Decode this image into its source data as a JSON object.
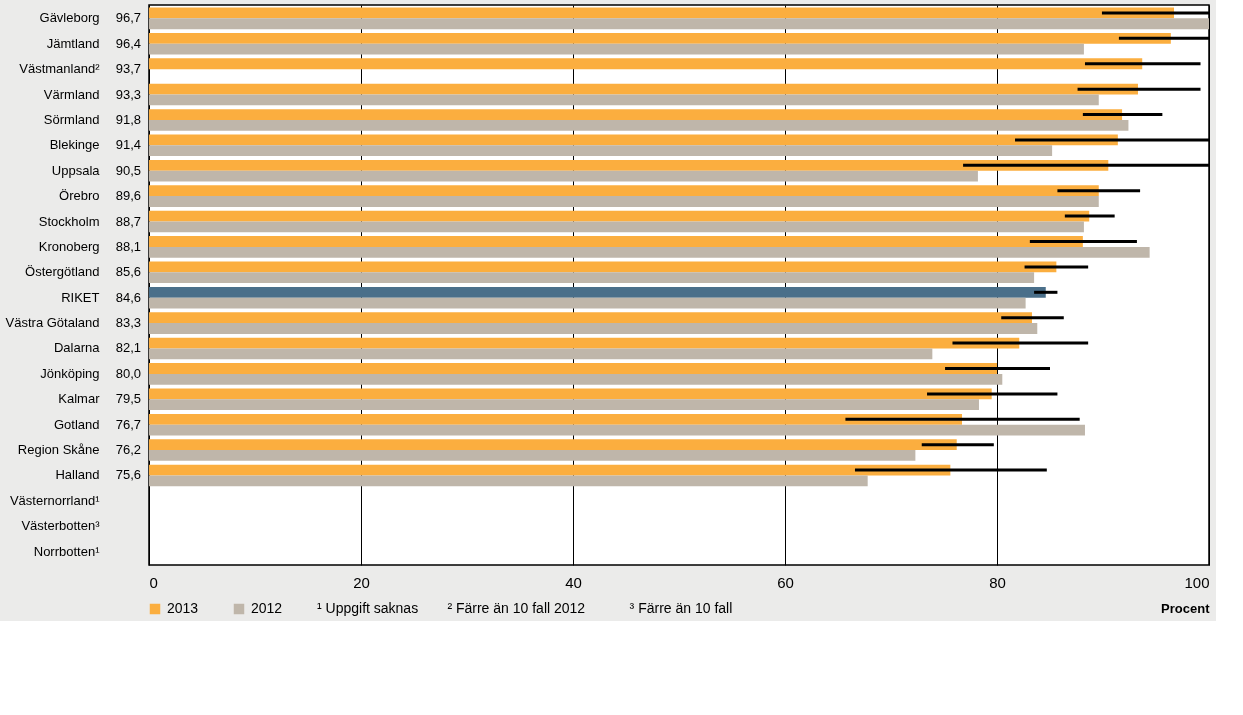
{
  "chart_data": {
    "type": "bar",
    "orientation": "horizontal",
    "categories": [
      "Gävleborg",
      "Jämtland",
      "Västmanland²",
      "Värmland",
      "Sörmland",
      "Blekinge",
      "Uppsala",
      "Örebro",
      "Stockholm",
      "Kronoberg",
      "Östergötland",
      "RIKET",
      "Västra Götaland",
      "Dalarna",
      "Jönköping",
      "Kalmar",
      "Gotland",
      "Region Skåne",
      "Halland",
      "Västernorrland¹",
      "Västerbotten³",
      "Norrbotten¹"
    ],
    "series": [
      {
        "name": "2013",
        "color": "#fbae3f",
        "colors": [
          "#fbae3f",
          "#fbae3f",
          "#fbae3f",
          "#fbae3f",
          "#fbae3f",
          "#fbae3f",
          "#fbae3f",
          "#fbae3f",
          "#fbae3f",
          "#fbae3f",
          "#fbae3f",
          "#4a6f8a",
          "#fbae3f",
          "#fbae3f",
          "#fbae3f",
          "#fbae3f",
          "#fbae3f",
          "#fbae3f",
          "#fbae3f",
          "#fbae3f",
          "#fbae3f",
          "#fbae3f"
        ],
        "values": [
          96.7,
          96.4,
          93.7,
          93.3,
          91.8,
          91.4,
          90.5,
          89.6,
          88.7,
          88.1,
          85.6,
          84.6,
          83.3,
          82.1,
          80.0,
          79.5,
          76.7,
          76.2,
          75.6,
          null,
          null,
          null
        ],
        "value_labels": [
          "96,7",
          "96,4",
          "93,7",
          "93,3",
          "91,8",
          "91,4",
          "90,5",
          "89,6",
          "88,7",
          "88,1",
          "85,6",
          "84,6",
          "83,3",
          "82,1",
          "80,0",
          "79,5",
          "76,7",
          "76,2",
          "75,6",
          null,
          null,
          null
        ],
        "errors": [
          [
            89.9,
            100
          ],
          [
            91.5,
            100
          ],
          [
            88.3,
            99.2
          ],
          [
            87.6,
            99.2
          ],
          [
            88.1,
            95.6
          ],
          [
            81.7,
            100
          ],
          [
            76.8,
            100
          ],
          [
            85.7,
            93.5
          ],
          [
            86.4,
            91.1
          ],
          [
            83.1,
            93.2
          ],
          [
            82.6,
            88.6
          ],
          [
            83.5,
            85.7
          ],
          [
            80.4,
            86.3
          ],
          [
            75.8,
            88.6
          ],
          [
            75.1,
            85.0
          ],
          [
            73.4,
            85.7
          ],
          [
            65.7,
            87.8
          ],
          [
            72.9,
            79.7
          ],
          [
            66.6,
            84.7
          ],
          null,
          null,
          null
        ]
      },
      {
        "name": "2012",
        "color": "#bfb6aa",
        "values": [
          100,
          88.2,
          null,
          89.6,
          92.4,
          85.2,
          78.2,
          89.6,
          88.2,
          94.4,
          83.5,
          82.7,
          83.8,
          73.9,
          80.5,
          78.3,
          88.3,
          72.3,
          67.8,
          null,
          null,
          null
        ]
      }
    ],
    "xlim": [
      0,
      100
    ],
    "xticks": [
      0,
      20,
      40,
      60,
      80,
      100
    ],
    "xlabel": "Procent",
    "grid": "x",
    "legend": "bottom left",
    "annotations": [
      "¹ Uppgift saknas",
      "² Färre än 10 fall 2012",
      "³ Färre än 10 fall"
    ]
  }
}
